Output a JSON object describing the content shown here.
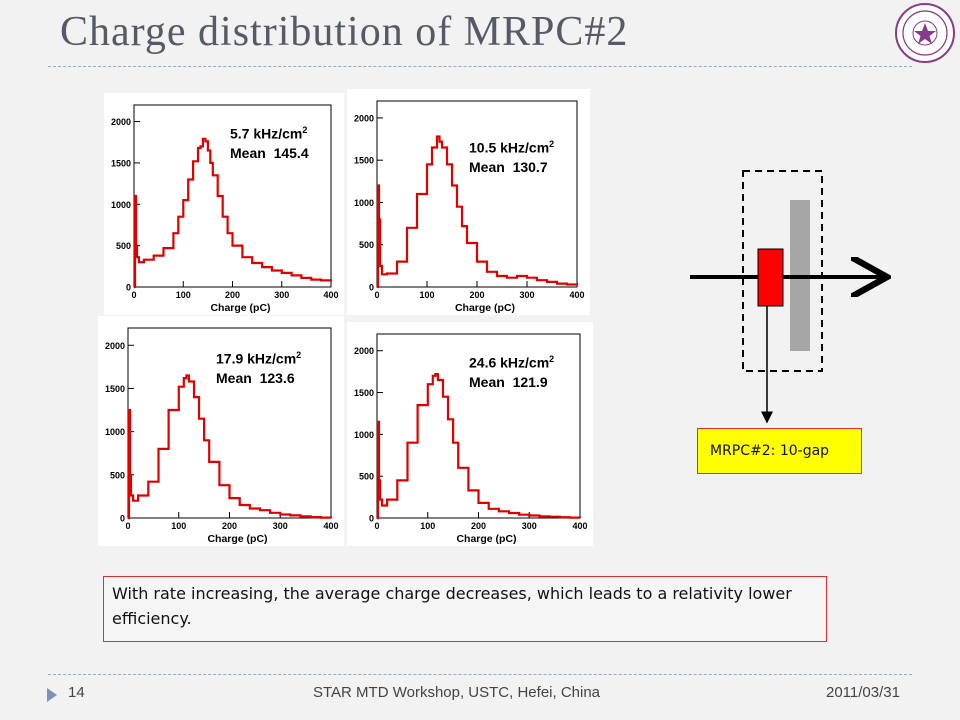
{
  "title": "Charge distribution of  MRPC#2",
  "footer": {
    "page": "14",
    "venue": "STAR MTD Workshop, USTC, Hefei, China",
    "date": "2011/03/31"
  },
  "note": "With rate increasing, the average charge decreases, which leads to a relativity lower efficiency.",
  "mrpc_label": "MRPC#2: 10-gap",
  "colors": {
    "histogram": "#e00000",
    "note_border": "#d93030",
    "label_bg": "#ffff00",
    "pad": "#ff0000",
    "plate": "#a6a6a6"
  },
  "chart_data": [
    {
      "type": "line",
      "rate": "5.7 kHz/cm",
      "rate_sup": "2",
      "mean_label": "Mean",
      "mean_value": "145.4",
      "xlabel": "Charge (pC)",
      "xlim": [
        0,
        400
      ],
      "ylim": [
        0,
        2200
      ],
      "xticks": [
        0,
        100,
        200,
        300,
        400
      ],
      "yticks": [
        0,
        500,
        1000,
        1500,
        2000
      ],
      "series": [
        {
          "x": [
            0,
            2,
            4,
            6,
            10,
            20,
            40,
            60,
            80,
            90,
            100,
            110,
            120,
            130,
            135,
            140,
            145,
            150,
            155,
            160,
            170,
            180,
            190,
            200,
            220,
            240,
            260,
            280,
            300,
            320,
            340,
            360,
            380,
            400
          ],
          "y": [
            0,
            1100,
            500,
            360,
            300,
            330,
            380,
            470,
            650,
            850,
            1050,
            1300,
            1520,
            1680,
            1700,
            1790,
            1760,
            1650,
            1500,
            1350,
            1100,
            850,
            650,
            500,
            360,
            290,
            240,
            200,
            170,
            140,
            110,
            90,
            80,
            70
          ]
        }
      ]
    },
    {
      "type": "line",
      "rate": "10.5 kHz/cm",
      "rate_sup": "2",
      "mean_label": "Mean",
      "mean_value": "130.7",
      "xlabel": "Charge (pC)",
      "xlim": [
        0,
        400
      ],
      "ylim": [
        0,
        2200
      ],
      "xticks": [
        0,
        100,
        200,
        300,
        400
      ],
      "yticks": [
        0,
        500,
        1000,
        1500,
        2000
      ],
      "series": [
        {
          "x": [
            0,
            2,
            4,
            6,
            10,
            20,
            40,
            60,
            80,
            100,
            110,
            120,
            125,
            130,
            140,
            150,
            160,
            170,
            180,
            200,
            220,
            240,
            260,
            280,
            300,
            320,
            340,
            360,
            380,
            400
          ],
          "y": [
            0,
            1200,
            800,
            250,
            150,
            160,
            300,
            700,
            1100,
            1450,
            1650,
            1780,
            1720,
            1650,
            1450,
            1200,
            950,
            720,
            520,
            300,
            180,
            130,
            110,
            130,
            110,
            80,
            60,
            40,
            30,
            20
          ]
        }
      ]
    },
    {
      "type": "line",
      "rate": "17.9 kHz/cm",
      "rate_sup": "2",
      "mean_label": "Mean",
      "mean_value": "123.6",
      "xlabel": "Charge (pC)",
      "xlim": [
        0,
        400
      ],
      "ylim": [
        0,
        2200
      ],
      "xticks": [
        0,
        100,
        200,
        300,
        400
      ],
      "yticks": [
        0,
        500,
        1000,
        1500,
        2000
      ],
      "series": [
        {
          "x": [
            0,
            2,
            4,
            6,
            10,
            20,
            40,
            60,
            80,
            100,
            110,
            115,
            120,
            130,
            140,
            150,
            160,
            180,
            200,
            220,
            240,
            260,
            280,
            300,
            320,
            340,
            360,
            380,
            400
          ],
          "y": [
            0,
            1250,
            500,
            260,
            200,
            260,
            420,
            800,
            1250,
            1520,
            1620,
            1650,
            1580,
            1400,
            1150,
            900,
            650,
            380,
            230,
            150,
            110,
            90,
            60,
            40,
            30,
            20,
            10,
            5,
            0
          ]
        }
      ]
    },
    {
      "type": "line",
      "rate": "24.6 kHz/cm",
      "rate_sup": "2",
      "mean_label": "Mean",
      "mean_value": "121.9",
      "xlabel": "Charge (pC)",
      "xlim": [
        0,
        400
      ],
      "ylim": [
        0,
        2200
      ],
      "xticks": [
        0,
        100,
        200,
        300,
        400
      ],
      "yticks": [
        0,
        500,
        1000,
        1500,
        2000
      ],
      "series": [
        {
          "x": [
            0,
            2,
            4,
            6,
            10,
            20,
            40,
            60,
            80,
            100,
            110,
            115,
            120,
            130,
            140,
            150,
            160,
            180,
            200,
            220,
            240,
            260,
            280,
            300,
            320,
            340,
            360,
            380,
            400
          ],
          "y": [
            0,
            1150,
            450,
            220,
            150,
            220,
            450,
            900,
            1350,
            1600,
            1700,
            1720,
            1650,
            1450,
            1180,
            900,
            600,
            330,
            180,
            110,
            80,
            60,
            40,
            30,
            20,
            15,
            10,
            5,
            0
          ]
        }
      ]
    }
  ]
}
